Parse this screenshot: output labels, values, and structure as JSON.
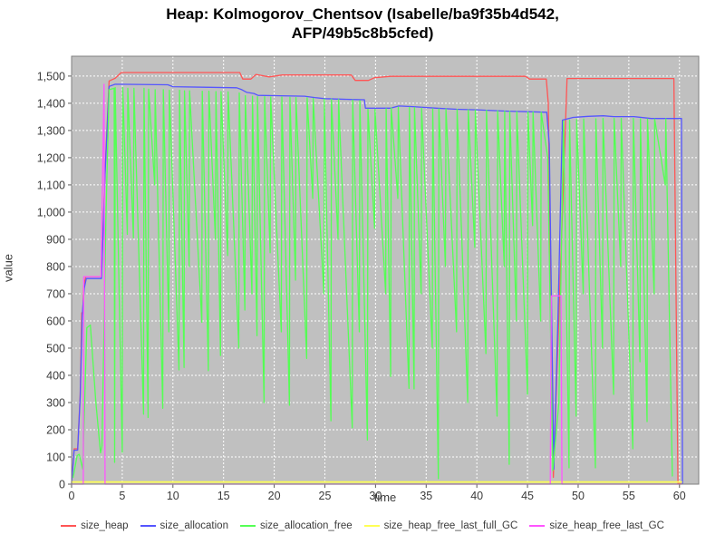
{
  "title": {
    "line1": "Heap: Kolmogorov_Chentsov (Isabelle/ba9f35b4d542,",
    "line2": "AFP/49b5c8b5cfed)"
  },
  "chart_data": {
    "type": "line",
    "title": "Heap: Kolmogorov_Chentsov (Isabelle/ba9f35b4d542, AFP/49b5c8b5cfed)",
    "xlabel": "time",
    "ylabel": "value",
    "x_range": [
      0,
      61.9
    ],
    "y_range": [
      0,
      1573
    ],
    "x_ticks": {
      "values": [
        0,
        5,
        10,
        15,
        20,
        25,
        30,
        35,
        40,
        45,
        50,
        55,
        60
      ],
      "labels": [
        "0",
        "5",
        "10",
        "15",
        "20",
        "25",
        "30",
        "35",
        "40",
        "45",
        "50",
        "55",
        "60"
      ]
    },
    "y_ticks": {
      "values": [
        0,
        100,
        200,
        300,
        400,
        500,
        600,
        700,
        800,
        900,
        1000,
        1100,
        1200,
        1300,
        1400,
        1500
      ],
      "labels": [
        "0",
        "100",
        "200",
        "300",
        "400",
        "500",
        "600",
        "700",
        "800",
        "900",
        "1,000",
        "1,100",
        "1,200",
        "1,300",
        "1,400",
        "1,500"
      ]
    },
    "grid": "white-dashed",
    "legend_position": "bottom",
    "plot_bg": "#C0C0C0",
    "axis_text_color": "#3b3b3b",
    "series": [
      {
        "name": "size_heap",
        "color": "#FF5555",
        "points": [
          [
            0,
            5
          ],
          [
            0.25,
            130
          ],
          [
            0.6,
            130
          ],
          [
            0.85,
            330
          ],
          [
            1.0,
            630
          ],
          [
            1.1,
            630
          ],
          [
            1.2,
            730
          ],
          [
            1.4,
            763
          ],
          [
            2.95,
            763
          ],
          [
            3.3,
            1150
          ],
          [
            3.7,
            1482
          ],
          [
            4.3,
            1492
          ],
          [
            4.9,
            1513
          ],
          [
            16.6,
            1513
          ],
          [
            16.9,
            1489
          ],
          [
            17.7,
            1489
          ],
          [
            18.2,
            1506
          ],
          [
            19.5,
            1497
          ],
          [
            20.8,
            1504
          ],
          [
            27.6,
            1504
          ],
          [
            28.0,
            1484
          ],
          [
            29.3,
            1484
          ],
          [
            29.9,
            1494
          ],
          [
            31.5,
            1499
          ],
          [
            44.8,
            1499
          ],
          [
            45.2,
            1489
          ],
          [
            46.85,
            1489
          ],
          [
            47.05,
            1400
          ],
          [
            47.55,
            25
          ],
          [
            48.9,
            1491
          ],
          [
            59.45,
            1491
          ],
          [
            59.85,
            2
          ],
          [
            60.1,
            2
          ]
        ]
      },
      {
        "name": "size_allocation",
        "color": "#5555FF",
        "points": [
          [
            0,
            2
          ],
          [
            0.25,
            125
          ],
          [
            0.6,
            125
          ],
          [
            0.85,
            320
          ],
          [
            1.05,
            620
          ],
          [
            1.25,
            720
          ],
          [
            1.45,
            756
          ],
          [
            2.95,
            756
          ],
          [
            3.3,
            1140
          ],
          [
            3.7,
            1462
          ],
          [
            4.3,
            1470
          ],
          [
            9.5,
            1468
          ],
          [
            10.0,
            1461
          ],
          [
            13.0,
            1459
          ],
          [
            16.3,
            1457
          ],
          [
            16.8,
            1450
          ],
          [
            17.3,
            1440
          ],
          [
            18.0,
            1436
          ],
          [
            18.4,
            1429
          ],
          [
            20.0,
            1428
          ],
          [
            23.0,
            1426
          ],
          [
            24.0,
            1421
          ],
          [
            25.0,
            1417
          ],
          [
            27.5,
            1414
          ],
          [
            28.9,
            1413
          ],
          [
            29.0,
            1382
          ],
          [
            31.5,
            1382
          ],
          [
            32.3,
            1390
          ],
          [
            33.5,
            1388
          ],
          [
            36.0,
            1382
          ],
          [
            38.0,
            1378
          ],
          [
            40.0,
            1376
          ],
          [
            43.0,
            1371
          ],
          [
            45.0,
            1369
          ],
          [
            46.9,
            1367
          ],
          [
            47.15,
            1250
          ],
          [
            47.6,
            55
          ],
          [
            48.0,
            600
          ],
          [
            48.45,
            1338
          ],
          [
            49.5,
            1348
          ],
          [
            51.0,
            1352
          ],
          [
            52.5,
            1354
          ],
          [
            53.5,
            1351
          ],
          [
            55.5,
            1351
          ],
          [
            56.5,
            1347
          ],
          [
            57.2,
            1344
          ],
          [
            60.2,
            1344
          ],
          [
            60.3,
            3
          ]
        ]
      },
      {
        "name": "size_allocation_free",
        "color": "#55FF55",
        "points": [
          [
            0.15,
            25
          ],
          [
            0.55,
            105
          ],
          [
            0.75,
            110
          ],
          [
            1.1,
            55
          ],
          [
            1.5,
            575
          ],
          [
            1.85,
            585
          ],
          [
            2.4,
            300
          ],
          [
            2.85,
            115
          ],
          [
            3.0,
            140
          ],
          [
            3.4,
            1000
          ],
          [
            3.7,
            1450
          ],
          [
            4.2,
            1455
          ],
          [
            4.25,
            80
          ],
          [
            4.3,
            1458
          ],
          [
            5.0,
            117
          ],
          [
            5.05,
            1458
          ],
          [
            5.5,
            918
          ],
          [
            5.55,
            1455
          ],
          [
            6.1,
            905
          ],
          [
            6.15,
            1455
          ],
          [
            7.1,
            257
          ],
          [
            7.15,
            1455
          ],
          [
            7.55,
            245
          ],
          [
            7.6,
            1452
          ],
          [
            8.2,
            1100
          ],
          [
            8.25,
            1450
          ],
          [
            9.0,
            279
          ],
          [
            9.05,
            1450
          ],
          [
            9.6,
            560
          ],
          [
            9.65,
            1448
          ],
          [
            10.6,
            420
          ],
          [
            10.65,
            1448
          ],
          [
            11.1,
            429
          ],
          [
            11.15,
            1446
          ],
          [
            11.6,
            800
          ],
          [
            11.65,
            1446
          ],
          [
            12.85,
            595
          ],
          [
            12.9,
            1444
          ],
          [
            13.5,
            417
          ],
          [
            13.55,
            1444
          ],
          [
            14.2,
            900
          ],
          [
            14.25,
            1443
          ],
          [
            14.7,
            473
          ],
          [
            14.75,
            1443
          ],
          [
            15.4,
            840
          ],
          [
            15.45,
            1442
          ],
          [
            16.5,
            500
          ],
          [
            16.55,
            1438
          ],
          [
            17.1,
            640
          ],
          [
            17.15,
            1428
          ],
          [
            17.8,
            700
          ],
          [
            17.85,
            1426
          ],
          [
            18.3,
            546
          ],
          [
            18.35,
            1424
          ],
          [
            19.0,
            300
          ],
          [
            19.05,
            1424
          ],
          [
            19.6,
            850
          ],
          [
            19.65,
            1423
          ],
          [
            20.7,
            560
          ],
          [
            20.75,
            1423
          ],
          [
            21.5,
            290
          ],
          [
            21.55,
            1422
          ],
          [
            22.1,
            750
          ],
          [
            22.15,
            1421
          ],
          [
            23.2,
            462
          ],
          [
            23.25,
            1420
          ],
          [
            23.8,
            1050
          ],
          [
            23.85,
            1418
          ],
          [
            24.9,
            700
          ],
          [
            24.95,
            1416
          ],
          [
            25.6,
            233
          ],
          [
            25.65,
            1415
          ],
          [
            26.3,
            900
          ],
          [
            26.35,
            1414
          ],
          [
            27.7,
            207
          ],
          [
            27.75,
            1412
          ],
          [
            28.4,
            560
          ],
          [
            28.45,
            1410
          ],
          [
            29.2,
            162
          ],
          [
            29.25,
            1378
          ],
          [
            29.9,
            940
          ],
          [
            29.95,
            1378
          ],
          [
            31.0,
            700
          ],
          [
            31.05,
            1380
          ],
          [
            31.5,
            396
          ],
          [
            31.55,
            1383
          ],
          [
            32.2,
            1050
          ],
          [
            32.25,
            1386
          ],
          [
            33.3,
            352
          ],
          [
            33.35,
            1385
          ],
          [
            33.8,
            350
          ],
          [
            33.85,
            1384
          ],
          [
            34.5,
            700
          ],
          [
            34.55,
            1382
          ],
          [
            35.6,
            500
          ],
          [
            35.65,
            1380
          ],
          [
            36.2,
            20
          ],
          [
            36.25,
            1379
          ],
          [
            36.9,
            800
          ],
          [
            36.95,
            1379
          ],
          [
            38.0,
            560
          ],
          [
            38.05,
            1377
          ],
          [
            39.1,
            300
          ],
          [
            39.15,
            1376
          ],
          [
            39.8,
            870
          ],
          [
            39.85,
            1375
          ],
          [
            40.9,
            480
          ],
          [
            40.95,
            1374
          ],
          [
            42.0,
            250
          ],
          [
            42.05,
            1372
          ],
          [
            42.7,
            800
          ],
          [
            42.75,
            1371
          ],
          [
            43.2,
            73
          ],
          [
            43.25,
            1370
          ],
          [
            43.9,
            600
          ],
          [
            43.95,
            1369
          ],
          [
            45.0,
            330
          ],
          [
            45.05,
            1368
          ],
          [
            45.5,
            950
          ],
          [
            45.55,
            1368
          ],
          [
            46.3,
            600
          ],
          [
            46.35,
            1367
          ],
          [
            47.0,
            1200
          ],
          [
            47.5,
            50
          ],
          [
            48.1,
            300
          ],
          [
            48.55,
            1335
          ],
          [
            49.1,
            60
          ],
          [
            49.15,
            1338
          ],
          [
            49.8,
            250
          ],
          [
            49.85,
            1340
          ],
          [
            50.5,
            700
          ],
          [
            50.55,
            1342
          ],
          [
            51.7,
            60
          ],
          [
            51.75,
            1343
          ],
          [
            52.4,
            500
          ],
          [
            52.45,
            1344
          ],
          [
            53.5,
            330
          ],
          [
            53.55,
            1344
          ],
          [
            54.2,
            800
          ],
          [
            54.25,
            1344
          ],
          [
            55.4,
            130
          ],
          [
            55.45,
            1344
          ],
          [
            56.1,
            450
          ],
          [
            56.15,
            1343
          ],
          [
            56.8,
            230
          ],
          [
            56.85,
            1342
          ],
          [
            57.5,
            700
          ],
          [
            57.55,
            1342
          ],
          [
            58.6,
            1100
          ],
          [
            58.65,
            1343
          ],
          [
            59.3,
            30
          ]
        ]
      },
      {
        "name": "size_heap_free_last_full_GC",
        "color": "#FFFF55",
        "points": [
          [
            0,
            8
          ],
          [
            60.2,
            8
          ]
        ]
      },
      {
        "name": "size_heap_free_last_GC",
        "color": "#FF55FF",
        "points": [
          [
            0,
            0
          ],
          [
            1.15,
            0
          ],
          [
            1.2,
            763
          ],
          [
            2.9,
            763
          ],
          [
            3.2,
            1470
          ],
          [
            3.3,
            0
          ],
          [
            47.25,
            0
          ],
          [
            47.35,
            692
          ],
          [
            48.3,
            692
          ],
          [
            48.4,
            0
          ],
          [
            60.2,
            0
          ]
        ]
      }
    ]
  }
}
